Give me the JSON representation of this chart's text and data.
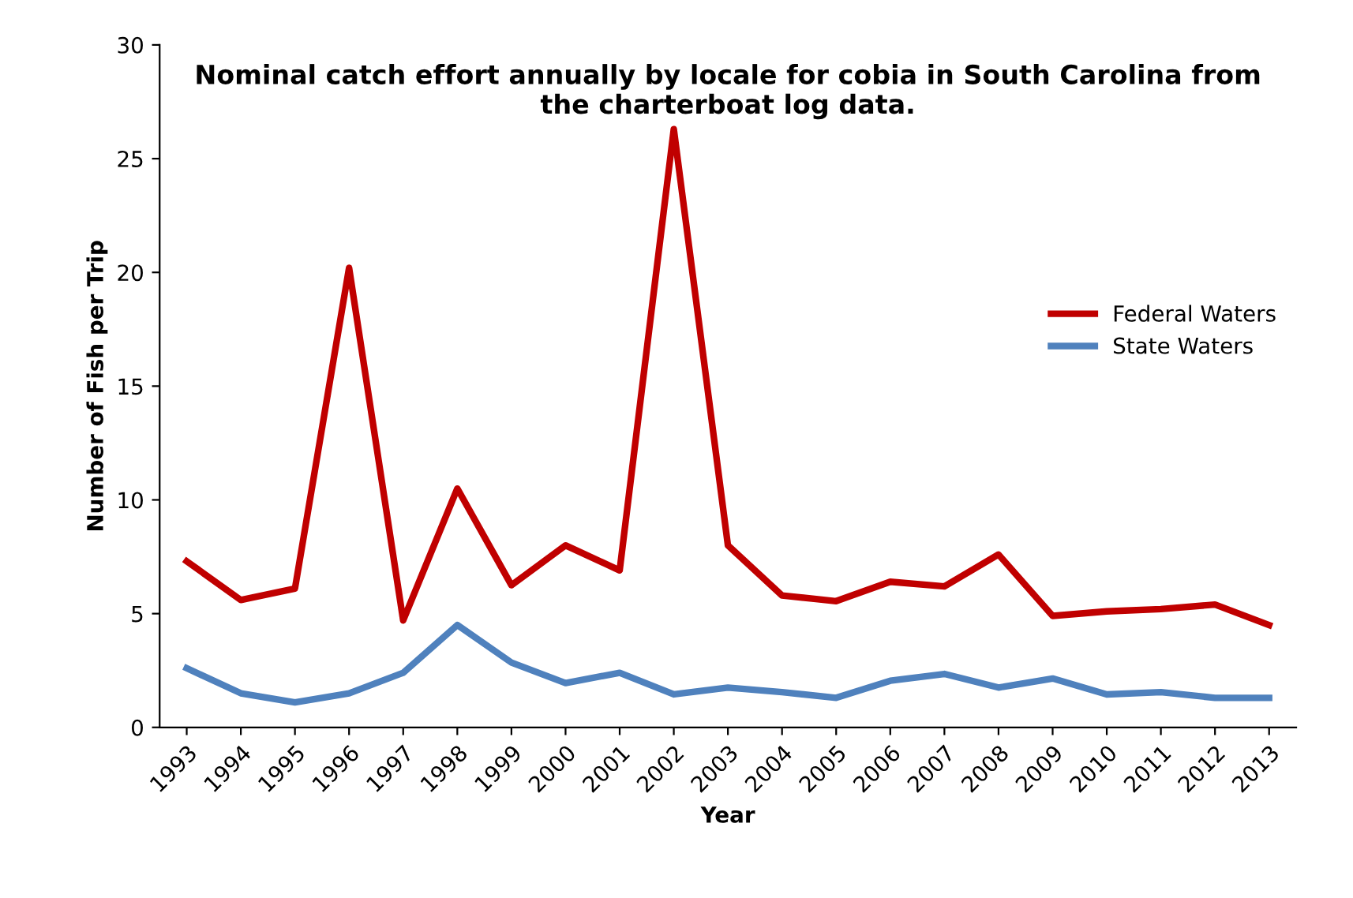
{
  "chart_data": {
    "type": "line",
    "title": "Nominal catch effort annually by locale for cobia in South Carolina from\nthe charterboat log data.",
    "xlabel": "Year",
    "ylabel": "Number of Fish per Trip",
    "categories": [
      "1993",
      "1994",
      "1995",
      "1996",
      "1997",
      "1998",
      "1999",
      "2000",
      "2001",
      "2002",
      "2003",
      "2004",
      "2005",
      "2006",
      "2007",
      "2008",
      "2009",
      "2010",
      "2011",
      "2012",
      "2013"
    ],
    "series": [
      {
        "name": "Federal Waters",
        "color": "#c00000",
        "values": [
          7.3,
          5.6,
          6.1,
          20.2,
          4.7,
          10.5,
          6.25,
          8.0,
          6.9,
          26.3,
          8.0,
          5.8,
          5.55,
          6.4,
          6.2,
          7.6,
          4.9,
          5.1,
          5.2,
          5.4,
          4.5
        ]
      },
      {
        "name": "State Waters",
        "color": "#4f81bd",
        "values": [
          2.6,
          1.5,
          1.1,
          1.5,
          2.4,
          4.5,
          2.85,
          1.95,
          2.4,
          1.45,
          1.75,
          1.55,
          1.3,
          2.05,
          2.35,
          1.75,
          2.15,
          1.45,
          1.55,
          1.3,
          1.3
        ]
      }
    ],
    "ylim": [
      0,
      30
    ],
    "yticks": [
      0,
      5,
      10,
      15,
      20,
      25,
      30
    ],
    "grid": false,
    "legend": "right",
    "marker": "none",
    "line_style": "solid"
  }
}
